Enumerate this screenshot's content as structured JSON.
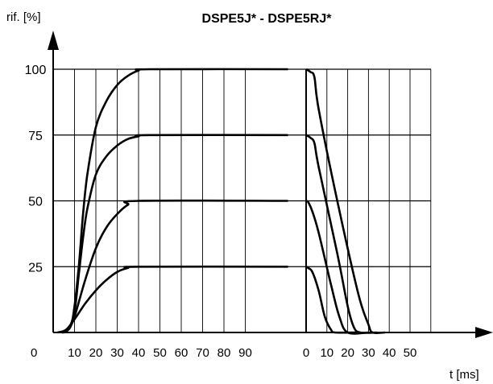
{
  "chart_data": {
    "type": "line",
    "title": "DSPE5J* - DSPE5RJ*",
    "ylabel": "rif. [%]",
    "xlabel": "t [ms]",
    "origin_label": "0",
    "ylim": [
      0,
      100
    ],
    "y_ticks": [
      "25",
      "50",
      "75",
      "100"
    ],
    "x_ticks_rise": [
      "10",
      "20",
      "30",
      "40",
      "50",
      "60",
      "70",
      "80",
      "90"
    ],
    "x_ticks_fall": [
      "0",
      "10",
      "20",
      "30",
      "40",
      "50"
    ],
    "grid": true,
    "series": [
      {
        "level": 100,
        "rise": [
          [
            4,
            0
          ],
          [
            8,
            2
          ],
          [
            10,
            10
          ],
          [
            12,
            25
          ],
          [
            14,
            45
          ],
          [
            16,
            60
          ],
          [
            20,
            78
          ],
          [
            25,
            88
          ],
          [
            30,
            94
          ],
          [
            35,
            97.5
          ],
          [
            40,
            99.5
          ],
          [
            45,
            100
          ],
          [
            110,
            100
          ]
        ],
        "fall": [
          [
            0,
            100
          ],
          [
            2,
            99
          ],
          [
            4,
            97
          ],
          [
            6,
            85
          ],
          [
            15,
            50
          ],
          [
            25,
            15
          ],
          [
            30,
            3
          ],
          [
            32,
            0
          ],
          [
            38,
            0
          ]
        ]
      },
      {
        "level": 75,
        "rise": [
          [
            4,
            0
          ],
          [
            7,
            1
          ],
          [
            10,
            8
          ],
          [
            12,
            22
          ],
          [
            14,
            36
          ],
          [
            16,
            47
          ],
          [
            20,
            60
          ],
          [
            25,
            67
          ],
          [
            30,
            71
          ],
          [
            35,
            73.5
          ],
          [
            40,
            74.5
          ],
          [
            45,
            75
          ],
          [
            110,
            75
          ]
        ],
        "fall": [
          [
            0,
            75
          ],
          [
            2,
            74
          ],
          [
            4,
            72
          ],
          [
            6,
            63
          ],
          [
            15,
            30
          ],
          [
            20,
            10
          ],
          [
            23,
            2
          ],
          [
            26,
            0
          ],
          [
            34,
            0
          ]
        ]
      },
      {
        "level": 50,
        "rise": [
          [
            4,
            0
          ],
          [
            7,
            1
          ],
          [
            10,
            6
          ],
          [
            15,
            20
          ],
          [
            20,
            32
          ],
          [
            25,
            40
          ],
          [
            30,
            45
          ],
          [
            35,
            48.5
          ],
          [
            40,
            50
          ],
          [
            110,
            50
          ]
        ],
        "fall": [
          [
            0,
            50
          ],
          [
            1,
            49.5
          ],
          [
            3,
            46
          ],
          [
            6,
            38
          ],
          [
            12,
            18
          ],
          [
            16,
            6
          ],
          [
            20,
            0
          ],
          [
            30,
            0
          ]
        ]
      },
      {
        "level": 25,
        "rise": [
          [
            2,
            0
          ],
          [
            6,
            1
          ],
          [
            10,
            5
          ],
          [
            15,
            11
          ],
          [
            20,
            16
          ],
          [
            25,
            20
          ],
          [
            30,
            23
          ],
          [
            35,
            24.5
          ],
          [
            40,
            25
          ],
          [
            110,
            25
          ]
        ],
        "fall": [
          [
            0,
            25
          ],
          [
            1,
            24.5
          ],
          [
            3,
            23
          ],
          [
            6,
            16
          ],
          [
            9,
            6
          ],
          [
            12,
            1
          ],
          [
            14,
            0
          ],
          [
            24,
            0
          ]
        ]
      }
    ]
  }
}
